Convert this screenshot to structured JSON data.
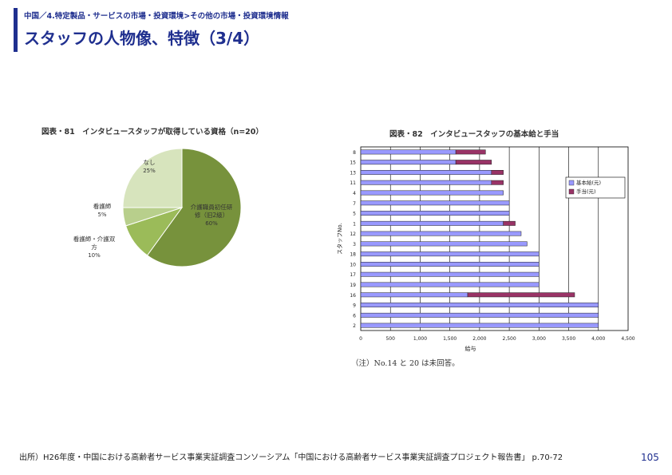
{
  "header": {
    "breadcrumb": "中国／4.特定製品・サービスの市場・投資環境>その他の市場・投資環境情報",
    "title": "スタッフの人物像、特徴（3/4）"
  },
  "colors": {
    "accent": "#1f2f8f"
  },
  "chart_data": [
    {
      "type": "pie",
      "title": "図表・81　インタビュースタッフが取得している資格（n=20）",
      "slices": [
        {
          "label": "介護職員初任研修（旧ヘルパー2級）",
          "label_lines": [
            "介護職員初任研",
            "修（旧2級）"
          ],
          "value_label": "60%",
          "value": 60,
          "color": "#77923c"
        },
        {
          "label": "看護師・介護双方",
          "label_lines": [
            "看護師・介護双",
            "方"
          ],
          "value_label": "10%",
          "value": 10,
          "color": "#9bbb59"
        },
        {
          "label": "看護師",
          "label_lines": [
            "看護師"
          ],
          "value_label": "5%",
          "value": 5,
          "color": "#b8cf8c"
        },
        {
          "label": "なし",
          "label_lines": [
            "なし"
          ],
          "value_label": "25%",
          "value": 25,
          "color": "#d7e4bd"
        }
      ]
    },
    {
      "type": "bar",
      "orientation": "horizontal",
      "stacked": true,
      "title": "図表・82　インタビュースタッフの基本給と手当",
      "xlabel": "給与",
      "ylabel": "スタッフNo.",
      "xlim": [
        0,
        4500
      ],
      "xticks": [
        0,
        500,
        1000,
        1500,
        2000,
        2500,
        3000,
        3500,
        4000,
        4500
      ],
      "xtick_labels": [
        "0",
        "500",
        "1,000",
        "1,500",
        "2,000",
        "2,500",
        "3,000",
        "3,500",
        "4,000",
        "4,500"
      ],
      "categories": [
        "8",
        "15",
        "13",
        "11",
        "4",
        "7",
        "5",
        "1",
        "12",
        "3",
        "18",
        "10",
        "17",
        "19",
        "16",
        "9",
        "6",
        "2"
      ],
      "series": [
        {
          "name": "基本給(元)",
          "color": "#9999ff",
          "values": [
            1600,
            1600,
            2200,
            2200,
            2400,
            2500,
            2500,
            2400,
            2700,
            2800,
            3000,
            3000,
            3000,
            3000,
            1800,
            4000,
            4000,
            4000
          ]
        },
        {
          "name": "手当(元)",
          "color": "#993366",
          "values": [
            500,
            600,
            200,
            200,
            0,
            0,
            0,
            200,
            0,
            0,
            0,
            0,
            0,
            0,
            1800,
            0,
            0,
            0
          ]
        }
      ],
      "legend": "right"
    }
  ],
  "note": "（注）No.14 と 20 は未回答。",
  "footer": {
    "source": "出所）H26年度・中国における高齢者サービス事業実証調査コンソーシアム「中国における高齢者サービス事業実証調査プロジェクト報告書」 p.70-72",
    "page_number": "105"
  }
}
